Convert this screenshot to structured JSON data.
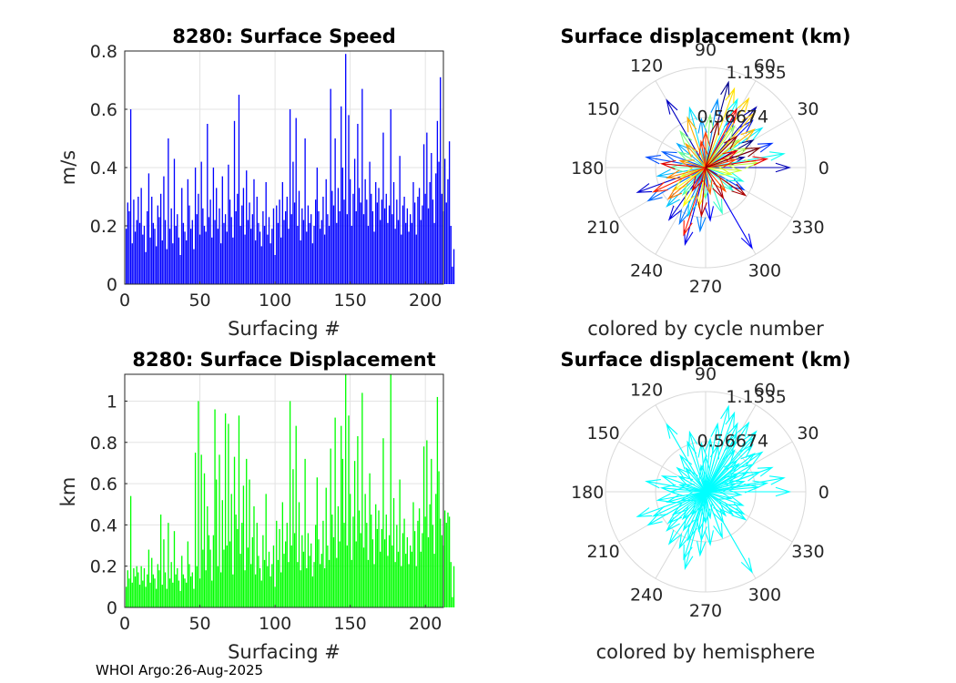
{
  "footer": "WHOI Argo:26-Aug-2025",
  "chart_data": [
    {
      "type": "bar",
      "title": "8280: Surface Speed",
      "xlabel": "Surfacing #",
      "ylabel": "m/s",
      "color": "#0000ff",
      "xlim": [
        0,
        212
      ],
      "ylim": [
        0,
        0.8
      ],
      "xticks": [
        0,
        50,
        100,
        150,
        200
      ],
      "yticks": [
        0,
        0.2,
        0.4,
        0.6,
        0.8
      ],
      "ytick_labels": [
        "0",
        "0.2",
        "0.4",
        "0.6",
        "0.8"
      ],
      "grid": true,
      "values": [
        0.19,
        0.28,
        0.25,
        0.6,
        0.14,
        0.29,
        0.18,
        0.22,
        0.3,
        0.21,
        0.33,
        0.17,
        0.2,
        0.11,
        0.25,
        0.38,
        0.16,
        0.3,
        0.21,
        0.19,
        0.13,
        0.27,
        0.23,
        0.31,
        0.15,
        0.37,
        0.22,
        0.12,
        0.5,
        0.19,
        0.26,
        0.14,
        0.43,
        0.2,
        0.24,
        0.16,
        0.1,
        0.33,
        0.21,
        0.18,
        0.15,
        0.36,
        0.27,
        0.19,
        0.22,
        0.12,
        0.4,
        0.24,
        0.31,
        0.17,
        0.42,
        0.26,
        0.2,
        0.18,
        0.55,
        0.23,
        0.29,
        0.16,
        0.4,
        0.22,
        0.33,
        0.19,
        0.26,
        0.14,
        0.37,
        0.21,
        0.24,
        0.18,
        0.41,
        0.29,
        0.23,
        0.16,
        0.56,
        0.25,
        0.31,
        0.65,
        0.2,
        0.27,
        0.33,
        0.17,
        0.39,
        0.22,
        0.28,
        0.19,
        0.24,
        0.36,
        0.15,
        0.3,
        0.21,
        0.18,
        0.13,
        0.25,
        0.2,
        0.35,
        0.17,
        0.23,
        0.14,
        0.19,
        0.26,
        0.1,
        0.27,
        0.21,
        0.29,
        0.16,
        0.35,
        0.22,
        0.25,
        0.3,
        0.19,
        0.6,
        0.24,
        0.42,
        0.28,
        0.57,
        0.2,
        0.32,
        0.15,
        0.26,
        0.22,
        0.5,
        0.18,
        0.27,
        0.21,
        0.24,
        0.14,
        0.2,
        0.29,
        0.4,
        0.25,
        0.19,
        0.22,
        0.3,
        0.17,
        0.36,
        0.24,
        0.2,
        0.67,
        0.32,
        0.27,
        0.5,
        0.21,
        0.33,
        0.25,
        0.61,
        0.4,
        0.29,
        0.79,
        0.24,
        0.58,
        0.36,
        0.2,
        0.31,
        0.43,
        0.25,
        0.55,
        0.33,
        0.28,
        0.67,
        0.24,
        0.36,
        0.29,
        0.2,
        0.42,
        0.31,
        0.25,
        0.18,
        0.35,
        0.28,
        0.33,
        0.22,
        0.29,
        0.52,
        0.26,
        0.31,
        0.21,
        0.27,
        0.6,
        0.24,
        0.35,
        0.19,
        0.29,
        0.22,
        0.44,
        0.17,
        0.27,
        0.3,
        0.21,
        0.26,
        0.18,
        0.24,
        0.21,
        0.35,
        0.28,
        0.17,
        0.3,
        0.33,
        0.22,
        0.27,
        0.48,
        0.31,
        0.52,
        0.26,
        0.35,
        0.45,
        0.29,
        0.21,
        0.38,
        0.56,
        0.42,
        0.71,
        0.31,
        0.25,
        0.43,
        0.28,
        0.36,
        0.49,
        0.2,
        0.06,
        0.12
      ]
    },
    {
      "type": "bar",
      "title": "8280: Surface Displacement",
      "xlabel": "Surfacing #",
      "ylabel": "km",
      "color": "#00ff00",
      "xlim": [
        0,
        212
      ],
      "ylim": [
        0,
        1.13
      ],
      "xticks": [
        0,
        50,
        100,
        150,
        200
      ],
      "yticks": [
        0,
        0.2,
        0.4,
        0.6,
        0.8,
        1
      ],
      "ytick_labels": [
        "0",
        "0.2",
        "0.4",
        "0.6",
        "0.8",
        "1"
      ],
      "grid": true,
      "values": [
        0.1,
        0.18,
        0.14,
        0.54,
        0.12,
        0.19,
        0.15,
        0.2,
        0.17,
        0.11,
        0.2,
        0.13,
        0.19,
        0.1,
        0.16,
        0.28,
        0.12,
        0.24,
        0.16,
        0.14,
        0.09,
        0.21,
        0.18,
        0.45,
        0.11,
        0.33,
        0.17,
        0.09,
        0.41,
        0.14,
        0.22,
        0.12,
        0.37,
        0.16,
        0.19,
        0.13,
        0.08,
        0.25,
        0.16,
        0.14,
        0.12,
        0.32,
        0.21,
        0.15,
        0.17,
        0.09,
        0.75,
        0.2,
        1.0,
        0.14,
        0.74,
        0.28,
        0.65,
        0.18,
        0.49,
        0.35,
        0.28,
        0.13,
        0.35,
        0.96,
        0.62,
        0.2,
        0.74,
        0.17,
        0.52,
        0.28,
        0.94,
        0.3,
        0.89,
        0.32,
        0.55,
        0.16,
        0.73,
        0.45,
        0.38,
        0.93,
        0.26,
        0.41,
        0.59,
        0.18,
        0.72,
        0.29,
        0.62,
        0.21,
        0.34,
        0.49,
        0.16,
        0.41,
        0.25,
        0.19,
        0.13,
        0.35,
        0.23,
        0.55,
        0.2,
        0.27,
        0.15,
        0.21,
        0.3,
        0.1,
        0.42,
        0.23,
        0.38,
        0.17,
        0.51,
        0.26,
        0.32,
        0.41,
        0.22,
        1.0,
        0.3,
        0.67,
        0.36,
        0.88,
        0.22,
        0.51,
        0.18,
        0.35,
        0.27,
        0.72,
        0.19,
        0.36,
        0.25,
        0.31,
        0.15,
        0.22,
        0.4,
        0.63,
        0.33,
        0.21,
        0.26,
        0.42,
        0.19,
        0.58,
        0.3,
        0.23,
        0.77,
        0.45,
        0.34,
        0.92,
        0.24,
        0.49,
        0.32,
        0.88,
        0.72,
        0.41,
        1.13,
        0.3,
        0.93,
        0.55,
        0.23,
        0.44,
        0.71,
        0.32,
        0.83,
        0.47,
        0.36,
        1.04,
        0.29,
        0.55,
        0.41,
        0.23,
        0.65,
        0.45,
        0.33,
        0.21,
        0.5,
        0.38,
        0.47,
        0.27,
        0.38,
        0.82,
        0.33,
        0.45,
        0.25,
        0.35,
        1.13,
        0.3,
        0.53,
        0.22,
        0.4,
        0.27,
        0.62,
        0.2,
        0.36,
        0.43,
        0.26,
        0.34,
        0.21,
        0.3,
        0.27,
        0.51,
        0.37,
        0.2,
        0.42,
        0.48,
        0.27,
        0.36,
        0.78,
        0.44,
        0.81,
        0.34,
        0.5,
        0.72,
        0.4,
        0.26,
        0.55,
        1.02,
        0.66,
        0.43,
        0.35,
        0.3,
        0.47,
        0.41,
        0.46,
        0.44,
        0.22,
        0.05,
        0.2
      ]
    },
    {
      "type": "polar-compass",
      "title": "Surface displacement (km)",
      "caption": "colored by cycle number",
      "rmax": 1.1335,
      "r_ticks": [
        0.56674,
        1.1335
      ],
      "r_tick_labels": [
        "0.56674",
        "1.1335"
      ],
      "theta_ticks": [
        0,
        30,
        60,
        90,
        120,
        150,
        180,
        210,
        240,
        270,
        300,
        330
      ],
      "theta_tick_labels": [
        "0",
        "30",
        "60",
        "90",
        "120",
        "150",
        "180",
        "210",
        "240",
        "270",
        "300",
        "330"
      ],
      "colormap": "jet",
      "vectors": [
        [
          30,
          0.62
        ],
        [
          75,
          1.0
        ],
        [
          15,
          0.45
        ],
        [
          50,
          0.89
        ],
        [
          0,
          0.95
        ],
        [
          120,
          0.88
        ],
        [
          200,
          0.82
        ],
        [
          235,
          0.72
        ],
        [
          255,
          0.9
        ],
        [
          300,
          1.05
        ],
        [
          275,
          0.6
        ],
        [
          45,
          0.75
        ],
        [
          60,
          0.66
        ],
        [
          20,
          0.8
        ],
        [
          330,
          0.5
        ],
        [
          170,
          0.68
        ],
        [
          160,
          0.52
        ],
        [
          210,
          0.75
        ],
        [
          245,
          0.7
        ],
        [
          265,
          0.72
        ],
        [
          80,
          0.78
        ],
        [
          95,
          0.55
        ],
        [
          140,
          0.42
        ],
        [
          190,
          0.55
        ],
        [
          225,
          0.62
        ],
        [
          250,
          0.58
        ],
        [
          105,
          0.7
        ],
        [
          35,
          0.78
        ],
        [
          65,
          0.85
        ],
        [
          10,
          0.9
        ],
        [
          340,
          0.45
        ],
        [
          320,
          0.4
        ],
        [
          290,
          0.55
        ],
        [
          270,
          0.35
        ],
        [
          230,
          0.4
        ],
        [
          180,
          0.4
        ],
        [
          150,
          0.35
        ],
        [
          125,
          0.5
        ],
        [
          85,
          0.6
        ],
        [
          55,
          0.57
        ],
        [
          40,
          0.49
        ],
        [
          25,
          0.52
        ],
        [
          5,
          0.6
        ],
        [
          355,
          0.4
        ],
        [
          345,
          0.3
        ],
        [
          200,
          0.3
        ],
        [
          215,
          0.45
        ],
        [
          240,
          0.5
        ],
        [
          260,
          0.45
        ],
        [
          70,
          0.95
        ],
        [
          58,
          0.92
        ],
        [
          48,
          0.83
        ],
        [
          38,
          0.7
        ],
        [
          110,
          0.6
        ],
        [
          130,
          0.35
        ],
        [
          165,
          0.3
        ],
        [
          195,
          0.45
        ],
        [
          220,
          0.55
        ],
        [
          280,
          0.3
        ],
        [
          310,
          0.35
        ],
        [
          15,
          0.35
        ],
        [
          90,
          0.4
        ],
        [
          100,
          0.3
        ],
        [
          205,
          0.65
        ],
        [
          252,
          0.8
        ],
        [
          62,
          0.75
        ],
        [
          28,
          0.4
        ],
        [
          8,
          0.7
        ],
        [
          175,
          0.5
        ],
        [
          240,
          0.3
        ],
        [
          265,
          0.55
        ],
        [
          300,
          0.4
        ],
        [
          325,
          0.55
        ],
        [
          45,
          0.5
        ],
        [
          75,
          0.55
        ],
        [
          20,
          0.65
        ]
      ]
    },
    {
      "type": "polar-compass",
      "title": "Surface displacement (km)",
      "caption": "colored by hemisphere",
      "rmax": 1.1335,
      "r_ticks": [
        0.56674,
        1.1335
      ],
      "r_tick_labels": [
        "0.56674",
        "1.1335"
      ],
      "theta_ticks": [
        0,
        30,
        60,
        90,
        120,
        150,
        180,
        210,
        240,
        270,
        300,
        330
      ],
      "theta_tick_labels": [
        "0",
        "30",
        "60",
        "90",
        "120",
        "150",
        "180",
        "210",
        "240",
        "270",
        "300",
        "330"
      ],
      "color": "#00ffff",
      "vectors": [
        [
          30,
          0.62
        ],
        [
          75,
          1.0
        ],
        [
          15,
          0.45
        ],
        [
          50,
          0.89
        ],
        [
          0,
          0.95
        ],
        [
          120,
          0.88
        ],
        [
          200,
          0.82
        ],
        [
          235,
          0.72
        ],
        [
          255,
          0.9
        ],
        [
          300,
          1.05
        ],
        [
          275,
          0.6
        ],
        [
          45,
          0.75
        ],
        [
          60,
          0.66
        ],
        [
          20,
          0.8
        ],
        [
          330,
          0.5
        ],
        [
          170,
          0.68
        ],
        [
          160,
          0.52
        ],
        [
          210,
          0.75
        ],
        [
          245,
          0.7
        ],
        [
          265,
          0.72
        ],
        [
          80,
          0.78
        ],
        [
          95,
          0.55
        ],
        [
          140,
          0.42
        ],
        [
          190,
          0.55
        ],
        [
          225,
          0.62
        ],
        [
          250,
          0.58
        ],
        [
          105,
          0.7
        ],
        [
          35,
          0.78
        ],
        [
          65,
          0.85
        ],
        [
          10,
          0.9
        ],
        [
          340,
          0.45
        ],
        [
          320,
          0.4
        ],
        [
          290,
          0.55
        ],
        [
          270,
          0.35
        ],
        [
          230,
          0.4
        ],
        [
          180,
          0.4
        ],
        [
          150,
          0.35
        ],
        [
          125,
          0.5
        ],
        [
          85,
          0.6
        ],
        [
          55,
          0.57
        ],
        [
          40,
          0.49
        ],
        [
          25,
          0.52
        ],
        [
          5,
          0.6
        ],
        [
          355,
          0.4
        ],
        [
          345,
          0.3
        ],
        [
          200,
          0.3
        ],
        [
          215,
          0.45
        ],
        [
          240,
          0.5
        ],
        [
          260,
          0.45
        ],
        [
          70,
          0.95
        ],
        [
          58,
          0.92
        ],
        [
          48,
          0.83
        ],
        [
          38,
          0.7
        ],
        [
          110,
          0.6
        ],
        [
          130,
          0.35
        ],
        [
          165,
          0.3
        ],
        [
          195,
          0.45
        ],
        [
          220,
          0.55
        ],
        [
          280,
          0.3
        ],
        [
          310,
          0.35
        ],
        [
          15,
          0.35
        ],
        [
          90,
          0.4
        ],
        [
          100,
          0.3
        ],
        [
          205,
          0.65
        ],
        [
          252,
          0.8
        ],
        [
          62,
          0.75
        ],
        [
          28,
          0.4
        ],
        [
          8,
          0.7
        ],
        [
          175,
          0.5
        ],
        [
          240,
          0.3
        ],
        [
          265,
          0.55
        ],
        [
          300,
          0.4
        ],
        [
          325,
          0.55
        ],
        [
          45,
          0.5
        ],
        [
          75,
          0.55
        ],
        [
          20,
          0.65
        ]
      ]
    }
  ]
}
